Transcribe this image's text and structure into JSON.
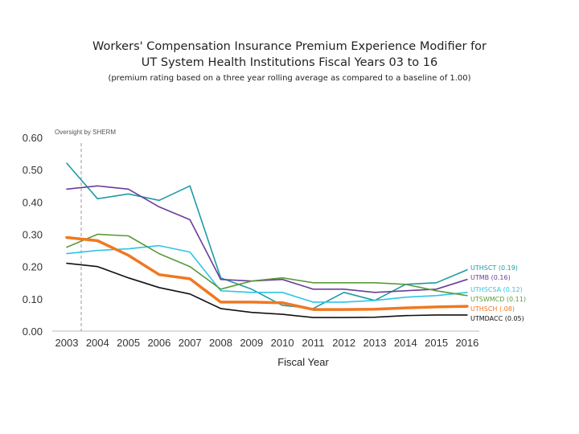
{
  "chart_data": {
    "type": "line",
    "title_line1": "Workers' Compensation Insurance Premium Experience Modifier for",
    "title_line2": "UT System Health Institutions Fiscal Years 03 to 16",
    "subtitle": "(premium rating based on a three year rolling average as compared to a baseline of 1.00)",
    "xlabel": "Fiscal Year",
    "ylabel": "",
    "ylim": [
      0,
      0.6
    ],
    "yticks": [
      "0.00",
      "0.10",
      "0.20",
      "0.30",
      "0.40",
      "0.50",
      "0.60"
    ],
    "x": [
      "2003",
      "2004",
      "2005",
      "2006",
      "2007",
      "2008",
      "2009",
      "2010",
      "2011",
      "2012",
      "2013",
      "2014",
      "2015",
      "2016"
    ],
    "annotation": {
      "text": "Oversight by SHERM",
      "at": "2003"
    },
    "series": [
      {
        "name": "UTHSCT (0.19)",
        "color": "#1e9aa6",
        "width": 1.6,
        "values": [
          0.52,
          0.41,
          0.425,
          0.405,
          0.45,
          0.165,
          0.13,
          0.08,
          0.07,
          0.12,
          0.095,
          0.145,
          0.15,
          0.19
        ]
      },
      {
        "name": "UTMB (0.16)",
        "color": "#6a3d9a",
        "width": 1.6,
        "values": [
          0.44,
          0.45,
          0.44,
          0.385,
          0.345,
          0.16,
          0.155,
          0.16,
          0.13,
          0.13,
          0.12,
          0.125,
          0.13,
          0.16
        ]
      },
      {
        "name": "UTHSCSA (0.12)",
        "color": "#2ec4e6",
        "width": 1.6,
        "values": [
          0.24,
          0.25,
          0.255,
          0.265,
          0.245,
          0.125,
          0.12,
          0.12,
          0.09,
          0.09,
          0.095,
          0.105,
          0.11,
          0.12
        ]
      },
      {
        "name": "UTSWMCD (0.11)",
        "color": "#5a9a3a",
        "width": 1.6,
        "values": [
          0.26,
          0.3,
          0.295,
          0.24,
          0.2,
          0.13,
          0.155,
          0.165,
          0.15,
          0.15,
          0.15,
          0.145,
          0.125,
          0.11
        ]
      },
      {
        "name": "UTHSCH (.08)",
        "color": "#f07820",
        "width": 3.5,
        "values": [
          0.29,
          0.28,
          0.235,
          0.175,
          0.162,
          0.09,
          0.09,
          0.088,
          0.067,
          0.067,
          0.068,
          0.072,
          0.075,
          0.077
        ]
      },
      {
        "name": "UTMDACC (0.05)",
        "color": "#111111",
        "width": 1.6,
        "values": [
          0.21,
          0.2,
          0.165,
          0.135,
          0.115,
          0.07,
          0.058,
          0.052,
          0.042,
          0.042,
          0.043,
          0.048,
          0.05,
          0.05
        ]
      }
    ]
  }
}
